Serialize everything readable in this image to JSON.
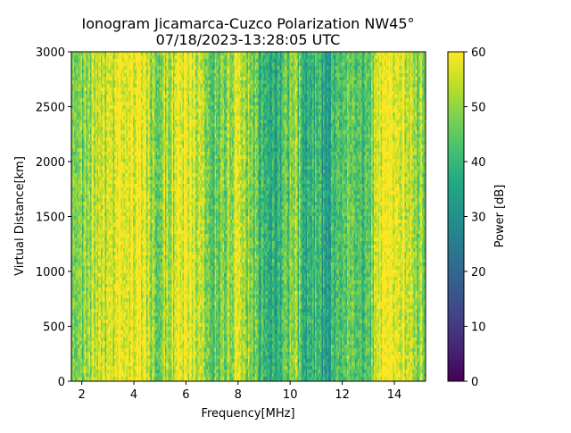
{
  "chart_data": {
    "type": "heatmap",
    "title": "Ionogram Jicamarca-Cuzco Polarization NW45°",
    "subtitle": "07/18/2023-13:28:05 UTC",
    "xlabel": "Frequency[MHz]",
    "ylabel": "Virtual Distance[km]",
    "xlim": [
      1.6,
      15.2
    ],
    "ylim": [
      0,
      3000
    ],
    "xticks": [
      2,
      4,
      6,
      8,
      10,
      12,
      14
    ],
    "yticks": [
      0,
      500,
      1000,
      1500,
      2000,
      2500,
      3000
    ],
    "colorbar": {
      "label": "Power [dB]",
      "range": [
        0,
        60
      ],
      "ticks": [
        0,
        10,
        20,
        30,
        40,
        50,
        60
      ],
      "colormap": "viridis"
    },
    "frequency_power_profile_db": [
      {
        "freq": 1.7,
        "power": 44
      },
      {
        "freq": 2.0,
        "power": 47
      },
      {
        "freq": 2.3,
        "power": 51
      },
      {
        "freq": 2.6,
        "power": 53
      },
      {
        "freq": 3.0,
        "power": 52
      },
      {
        "freq": 3.3,
        "power": 57
      },
      {
        "freq": 3.6,
        "power": 60
      },
      {
        "freq": 4.0,
        "power": 60
      },
      {
        "freq": 4.3,
        "power": 59
      },
      {
        "freq": 4.6,
        "power": 51
      },
      {
        "freq": 5.0,
        "power": 49
      },
      {
        "freq": 5.4,
        "power": 55
      },
      {
        "freq": 5.8,
        "power": 59
      },
      {
        "freq": 6.2,
        "power": 58
      },
      {
        "freq": 6.6,
        "power": 53
      },
      {
        "freq": 7.0,
        "power": 44
      },
      {
        "freq": 7.4,
        "power": 47
      },
      {
        "freq": 7.8,
        "power": 55
      },
      {
        "freq": 8.2,
        "power": 52
      },
      {
        "freq": 8.6,
        "power": 44
      },
      {
        "freq": 9.0,
        "power": 41
      },
      {
        "freq": 9.4,
        "power": 37
      },
      {
        "freq": 9.8,
        "power": 45
      },
      {
        "freq": 10.2,
        "power": 49
      },
      {
        "freq": 10.6,
        "power": 38
      },
      {
        "freq": 11.0,
        "power": 40
      },
      {
        "freq": 11.4,
        "power": 33
      },
      {
        "freq": 11.8,
        "power": 43
      },
      {
        "freq": 12.2,
        "power": 46
      },
      {
        "freq": 12.6,
        "power": 41
      },
      {
        "freq": 13.0,
        "power": 45
      },
      {
        "freq": 13.4,
        "power": 58
      },
      {
        "freq": 13.8,
        "power": 60
      },
      {
        "freq": 14.2,
        "power": 59
      },
      {
        "freq": 14.6,
        "power": 55
      },
      {
        "freq": 15.0,
        "power": 50
      }
    ]
  }
}
